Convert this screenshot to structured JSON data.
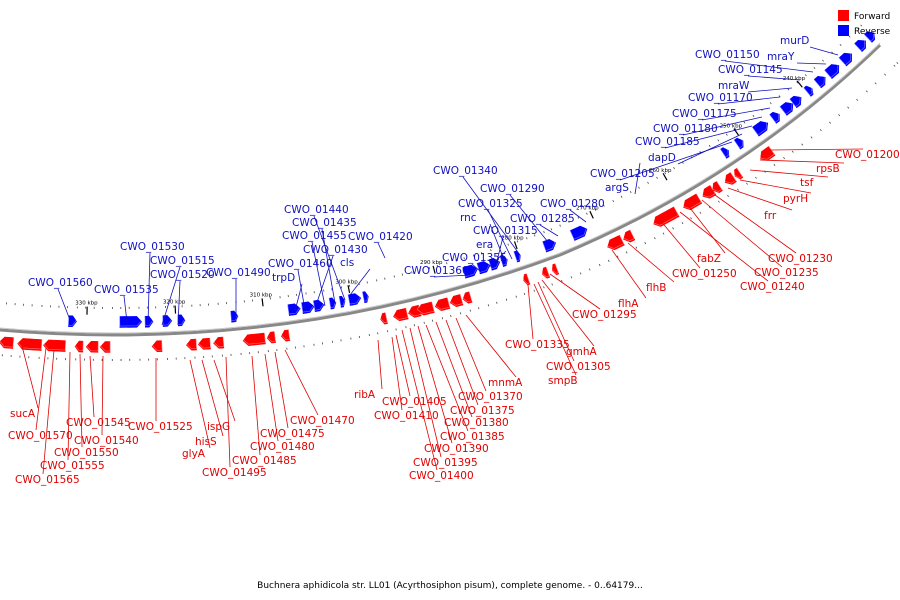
{
  "caption": "Buchnera aphidicola str. LL01 (Acyrthosiphon pisum), complete genome. - 0..64179...",
  "legend": [
    {
      "label": "Forward",
      "color": "#ff0000"
    },
    {
      "label": "Reverse",
      "color": "#0000ff"
    }
  ],
  "colors": {
    "forward": "#ff0000",
    "reverse": "#0000ff",
    "backbone": "#777777"
  },
  "ticks": [
    {
      "kbp": 310,
      "label": "310 kbp"
    },
    {
      "kbp": 300,
      "label": "300 kbp"
    },
    {
      "kbp": 290,
      "label": "290 kbp"
    },
    {
      "kbp": 280,
      "label": "280 kbp"
    },
    {
      "kbp": 270,
      "label": "270 kbp"
    },
    {
      "kbp": 260,
      "label": "260 kbp"
    },
    {
      "kbp": 250,
      "label": "250 kbp"
    },
    {
      "kbp": 240,
      "label": "240 kbp"
    },
    {
      "kbp": 320,
      "label": "320 kbp"
    },
    {
      "kbp": 330,
      "label": "330 kbp"
    }
  ],
  "reverse_genes": [
    "murD",
    "mraY",
    "CWO_01150",
    "CWO_01145",
    "mraW",
    "CWO_01170",
    "CWO_01175",
    "CWO_01180",
    "CWO_01185",
    "dapD",
    "CWO_01205",
    "argS",
    "CWO_01280",
    "CWO_01285",
    "CWO_01290",
    "CWO_01340",
    "CWO_01325",
    "rnc",
    "CWO_01315",
    "era",
    "CWO_01355",
    "CWO_01360",
    "CWO_01420",
    "CWO_01440",
    "CWO_01435",
    "CWO_01455",
    "CWO_01430",
    "cls",
    "CWO_01460",
    "trpD",
    "CWO_01490",
    "CWO_01530",
    "CWO_01515",
    "CWO_01520",
    "CWO_01535",
    "CWO_01560"
  ],
  "forward_genes": [
    "CWO_01200",
    "rpsB",
    "tsf",
    "pyrH",
    "frr",
    "CWO_01230",
    "fabZ",
    "CWO_01235",
    "CWO_01240",
    "CWO_01250",
    "flhB",
    "flhA",
    "CWO_01295",
    "CWO_01335",
    "gmhA",
    "CWO_01305",
    "smpB",
    "mnmA",
    "CWO_01370",
    "CWO_01375",
    "CWO_01380",
    "CWO_01385",
    "CWO_01390",
    "CWO_01395",
    "CWO_01400",
    "ribA",
    "CWO_01405",
    "CWO_01410",
    "CWO_01470",
    "CWO_01475",
    "CWO_01480",
    "CWO_01485",
    "CWO_01495",
    "glyA",
    "hisS",
    "ispG",
    "CWO_01525",
    "CWO_01545",
    "CWO_01540",
    "CWO_01550",
    "CWO_01555",
    "CWO_01565",
    "CWO_01570",
    "sucA"
  ]
}
